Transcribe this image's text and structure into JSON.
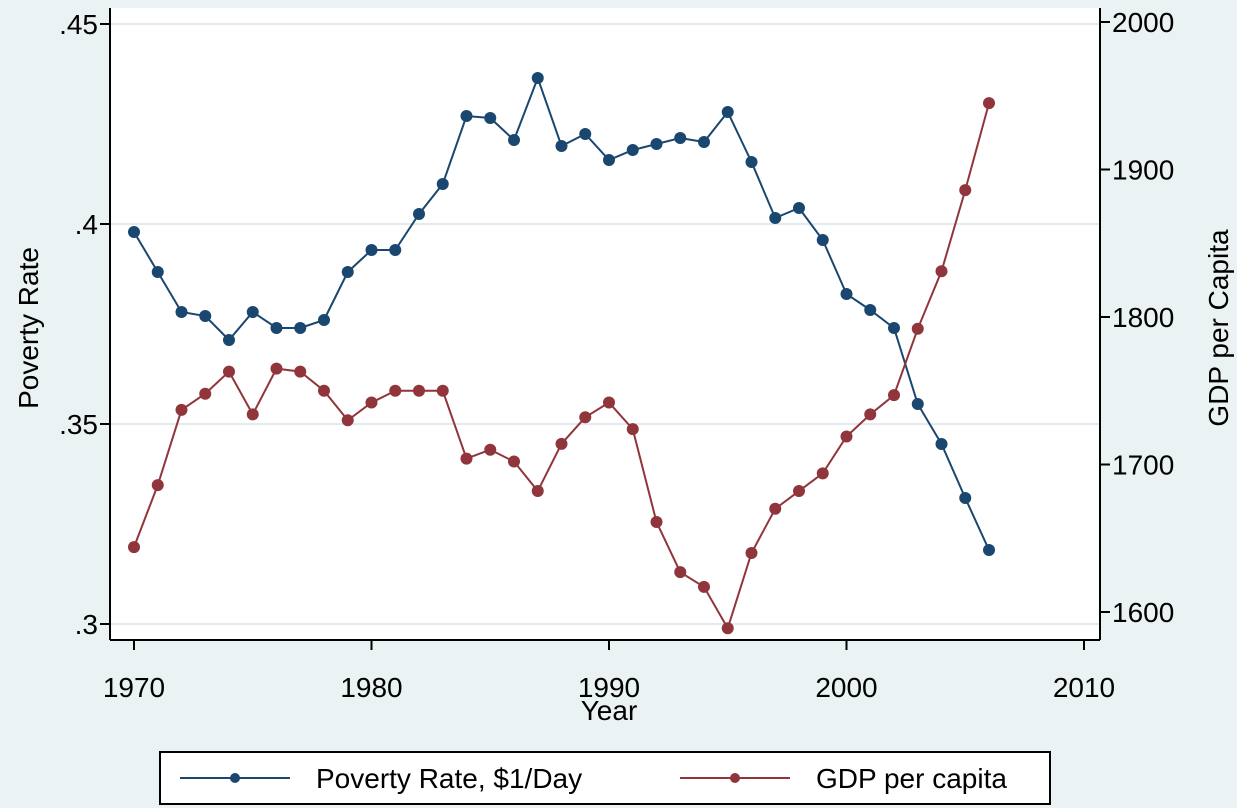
{
  "chart_data": {
    "type": "line",
    "xlabel": "Year",
    "ylabel_left": "Poverty Rate",
    "ylabel_right": "GDP per Capita",
    "xlim": [
      1970,
      2010
    ],
    "ylim_left": [
      0.3,
      0.45
    ],
    "ylim_right": [
      1600,
      2000
    ],
    "x_ticks": [
      1970,
      1980,
      1990,
      2000,
      2010
    ],
    "y_left_ticks": [
      0.3,
      0.35,
      0.4,
      0.45
    ],
    "y_left_tick_labels": [
      ".3",
      ".35",
      ".4",
      ".45"
    ],
    "y_right_ticks": [
      1600,
      1700,
      1800,
      1900,
      2000
    ],
    "grid": true,
    "legend_position": "bottom",
    "series": [
      {
        "name": "Poverty Rate, $1/Day",
        "axis": "left",
        "color": "#1a476f",
        "x": [
          1970,
          1971,
          1972,
          1973,
          1974,
          1975,
          1976,
          1977,
          1978,
          1979,
          1980,
          1981,
          1982,
          1983,
          1984,
          1985,
          1986,
          1987,
          1988,
          1989,
          1990,
          1991,
          1992,
          1993,
          1994,
          1995,
          1996,
          1997,
          1998,
          1999,
          2000,
          2001,
          2002,
          2003,
          2004,
          2005,
          2006
        ],
        "values": [
          0.398,
          0.388,
          0.378,
          0.377,
          0.371,
          0.378,
          0.374,
          0.374,
          0.376,
          0.388,
          0.3935,
          0.3935,
          0.4025,
          0.41,
          0.427,
          0.4265,
          0.421,
          0.4365,
          0.4195,
          0.4225,
          0.416,
          0.4185,
          0.42,
          0.4215,
          0.4205,
          0.428,
          0.4155,
          0.4015,
          0.404,
          0.396,
          0.3825,
          0.3785,
          0.374,
          0.355,
          0.345,
          0.3315,
          0.3185
        ]
      },
      {
        "name": "GDP per capita",
        "axis": "right",
        "color": "#90353b",
        "x": [
          1970,
          1971,
          1972,
          1973,
          1974,
          1975,
          1976,
          1977,
          1978,
          1979,
          1980,
          1981,
          1982,
          1983,
          1984,
          1985,
          1986,
          1987,
          1988,
          1989,
          1990,
          1991,
          1992,
          1993,
          1994,
          1995,
          1996,
          1997,
          1998,
          1999,
          2000,
          2001,
          2002,
          2003,
          2004,
          2005,
          2006
        ],
        "values": [
          1644,
          1686,
          1737,
          1748,
          1763,
          1734,
          1765,
          1763,
          1750,
          1730,
          1742,
          1750,
          1750,
          1750,
          1704,
          1710,
          1702,
          1682,
          1714,
          1732,
          1742,
          1724,
          1661,
          1627,
          1617,
          1589,
          1640,
          1670,
          1682,
          1694,
          1719,
          1734,
          1747,
          1792,
          1831,
          1886,
          1945
        ]
      }
    ]
  }
}
